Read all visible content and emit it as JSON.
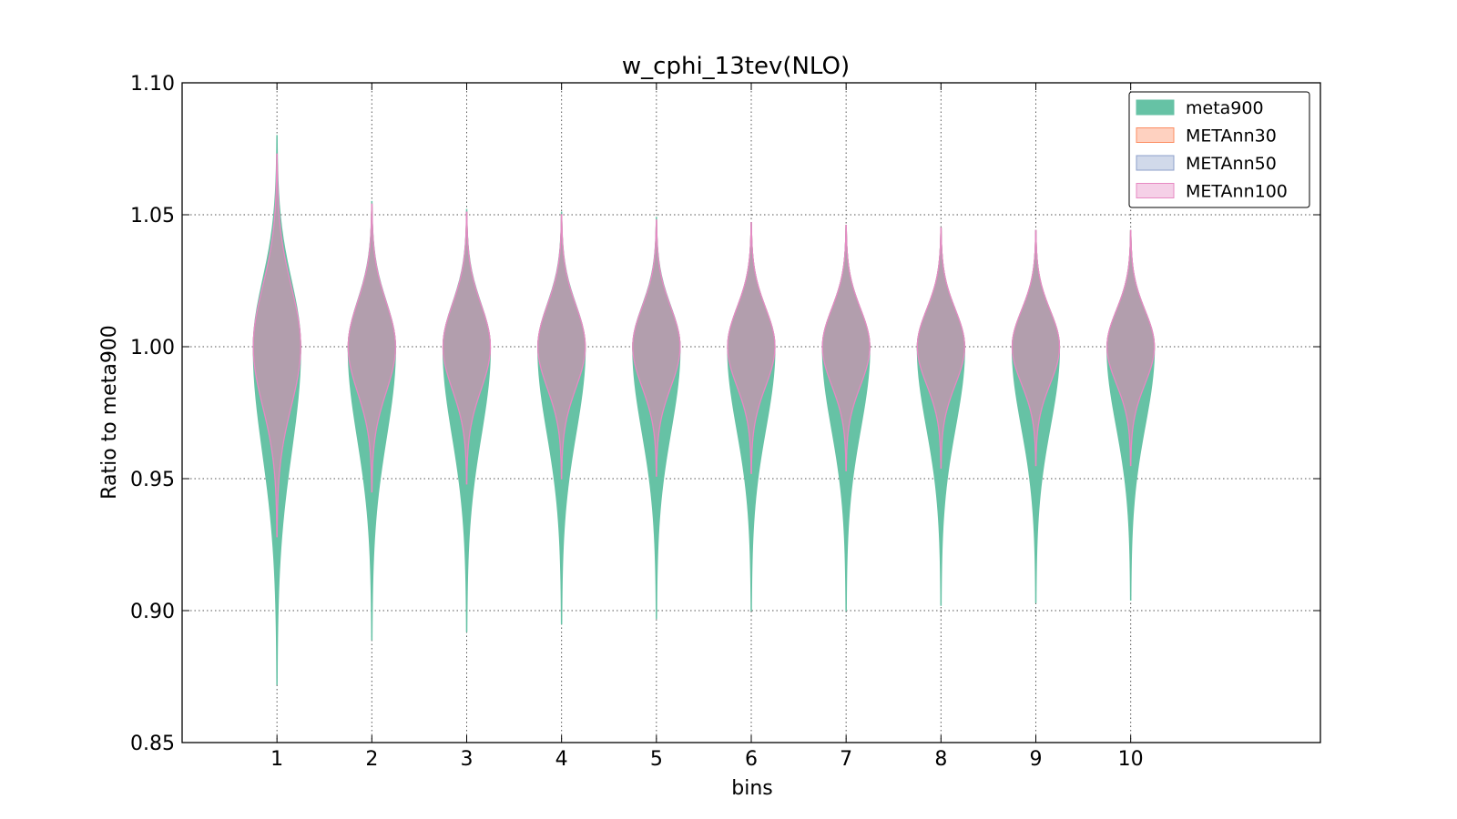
{
  "chart_data": {
    "type": "violin",
    "title": "w_cphi_13tev(NLO)",
    "xlabel": "bins",
    "ylabel": "Ratio to meta900",
    "categories": [
      "1",
      "2",
      "3",
      "4",
      "5",
      "6",
      "7",
      "8",
      "9",
      "10"
    ],
    "xlim": [
      0,
      12
    ],
    "ylim": [
      0.85,
      1.1
    ],
    "yticks": [
      "0.85",
      "0.90",
      "0.95",
      "1.00",
      "1.05",
      "1.10"
    ],
    "grid": true,
    "legend_position": "top-right",
    "series": [
      {
        "name": "meta900",
        "color": "#66c2a5",
        "min": [
          0.872,
          0.889,
          0.892,
          0.895,
          0.897,
          0.9,
          0.9,
          0.902,
          0.903,
          0.904
        ],
        "max": [
          1.08,
          1.055,
          1.052,
          1.051,
          1.049,
          1.047,
          1.046,
          1.045,
          1.044,
          1.044
        ]
      },
      {
        "name": "METAnn30",
        "color": "#fc8d62",
        "min": [
          0.928,
          0.945,
          0.948,
          0.95,
          0.951,
          0.952,
          0.953,
          0.954,
          0.955,
          0.955
        ],
        "max": [
          1.073,
          1.054,
          1.051,
          1.05,
          1.048,
          1.047,
          1.046,
          1.045,
          1.044,
          1.044
        ]
      },
      {
        "name": "METAnn50",
        "color": "#8da0cb",
        "min": [
          0.928,
          0.945,
          0.948,
          0.95,
          0.951,
          0.952,
          0.953,
          0.954,
          0.955,
          0.955
        ],
        "max": [
          1.073,
          1.054,
          1.051,
          1.05,
          1.048,
          1.047,
          1.046,
          1.045,
          1.044,
          1.044
        ]
      },
      {
        "name": "METAnn100",
        "color": "#e78ac3",
        "min": [
          0.928,
          0.945,
          0.948,
          0.95,
          0.951,
          0.952,
          0.953,
          0.954,
          0.955,
          0.955
        ],
        "max": [
          1.073,
          1.054,
          1.051,
          1.05,
          1.048,
          1.047,
          1.046,
          1.045,
          1.044,
          1.044
        ]
      }
    ],
    "center": 1.0
  }
}
